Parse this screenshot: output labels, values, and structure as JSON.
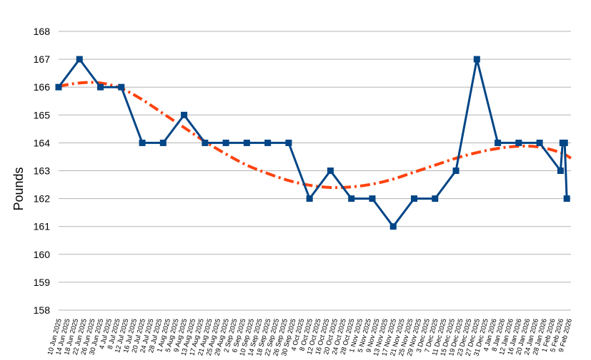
{
  "chart_data": {
    "type": "line",
    "title": "",
    "xlabel": "",
    "ylabel": "Pounds",
    "ylim": [
      158,
      168
    ],
    "yticks": [
      158,
      159,
      160,
      161,
      162,
      163,
      164,
      165,
      166,
      167,
      168
    ],
    "grid": "horizontal",
    "legend": "none",
    "x_ticks": [
      "10 Jun 2025",
      "14 Jun 2025",
      "18 Jun 2025",
      "22 Jun 2025",
      "26 Jun 2025",
      "30 Jun 2025",
      "4 Jul 2025",
      "8 Jul 2025",
      "12 Jul 2025",
      "16 Jul 2025",
      "20 Jul 2025",
      "24 Jul 2025",
      "28 Jul 2025",
      "1 Aug 2025",
      "5 Aug 2025",
      "9 Aug 2025",
      "13 Aug 2025",
      "17 Aug 2025",
      "21 Aug 2025",
      "25 Aug 2025",
      "29 Aug 2025",
      "2 Sep 2025",
      "6 Sep 2025",
      "10 Sep 2025",
      "14 Sep 2025",
      "18 Sep 2025",
      "22 Sep 2025",
      "26 Sep 2025",
      "30 Sep 2025",
      "4 Oct 2025",
      "8 Oct 2025",
      "12 Oct 2025",
      "16 Oct 2025",
      "20 Oct 2025",
      "24 Oct 2025",
      "28 Oct 2025",
      "1 Nov 2025",
      "5 Nov 2025",
      "9 Nov 2025",
      "13 Nov 2025",
      "17 Nov 2025",
      "21 Nov 2025",
      "25 Nov 2025",
      "29 Nov 2025",
      "3 Dec 2025",
      "7 Dec 2025",
      "11 Dec 2025",
      "15 Dec 2025",
      "19 Dec 2025",
      "23 Dec 2025",
      "27 Dec 2025",
      "31 Dec 2025",
      "4 Jan 2026",
      "8 Jan 2026",
      "12 Jan 2026",
      "16 Jan 2026",
      "20 Jan 2026",
      "24 Jan 2026",
      "28 Jan 2026",
      "1 Feb 2026",
      "5 Feb 2026",
      "9 Feb 2026"
    ],
    "series": [
      {
        "color": "#004586",
        "marker": "square",
        "x": [
          "10 Jun 2025",
          "20 Jun 2025",
          "30 Jun 2025",
          "10 Jul 2025",
          "20 Jul 2025",
          "30 Jul 2025",
          "9 Aug 2025",
          "19 Aug 2025",
          "29 Aug 2025",
          "8 Sep 2025",
          "18 Sep 2025",
          "28 Sep 2025",
          "8 Oct 2025",
          "18 Oct 2025",
          "28 Oct 2025",
          "7 Nov 2025",
          "17 Nov 2025",
          "27 Nov 2025",
          "7 Dec 2025",
          "17 Dec 2025",
          "27 Dec 2025",
          "6 Jan 2026",
          "16 Jan 2026",
          "26 Jan 2026",
          "5 Feb 2026",
          "6 Feb 2026",
          "7 Feb 2026",
          "8 Feb 2026"
        ],
        "values": [
          166,
          167,
          166,
          166,
          164,
          164,
          165,
          164,
          164,
          164,
          164,
          164,
          162,
          163,
          162,
          162,
          161,
          162,
          162,
          163,
          167,
          164,
          164,
          164,
          163,
          164,
          164,
          162
        ]
      },
      {
        "color": "#ff420e",
        "style": "dash-dot",
        "type": "trendline",
        "x": [
          "10 Jun 2025",
          "20 Jun 2025",
          "30 Jun 2025",
          "10 Jul 2025",
          "20 Jul 2025",
          "30 Jul 2025",
          "9 Aug 2025",
          "19 Aug 2025",
          "29 Aug 2025",
          "8 Sep 2025",
          "18 Sep 2025",
          "28 Sep 2025",
          "8 Oct 2025",
          "18 Oct 2025",
          "28 Oct 2025",
          "7 Nov 2025",
          "17 Nov 2025",
          "27 Nov 2025",
          "7 Dec 2025",
          "17 Dec 2025",
          "27 Dec 2025",
          "6 Jan 2026",
          "16 Jan 2026",
          "26 Jan 2026",
          "5 Feb 2026",
          "10 Feb 2026"
        ],
        "values": [
          166.03,
          166.15,
          166.15,
          165.95,
          165.55,
          165.05,
          164.55,
          164.05,
          163.6,
          163.2,
          162.9,
          162.65,
          162.48,
          162.4,
          162.42,
          162.52,
          162.7,
          162.95,
          163.2,
          163.45,
          163.65,
          163.8,
          163.88,
          163.85,
          163.65,
          163.45
        ]
      }
    ]
  }
}
